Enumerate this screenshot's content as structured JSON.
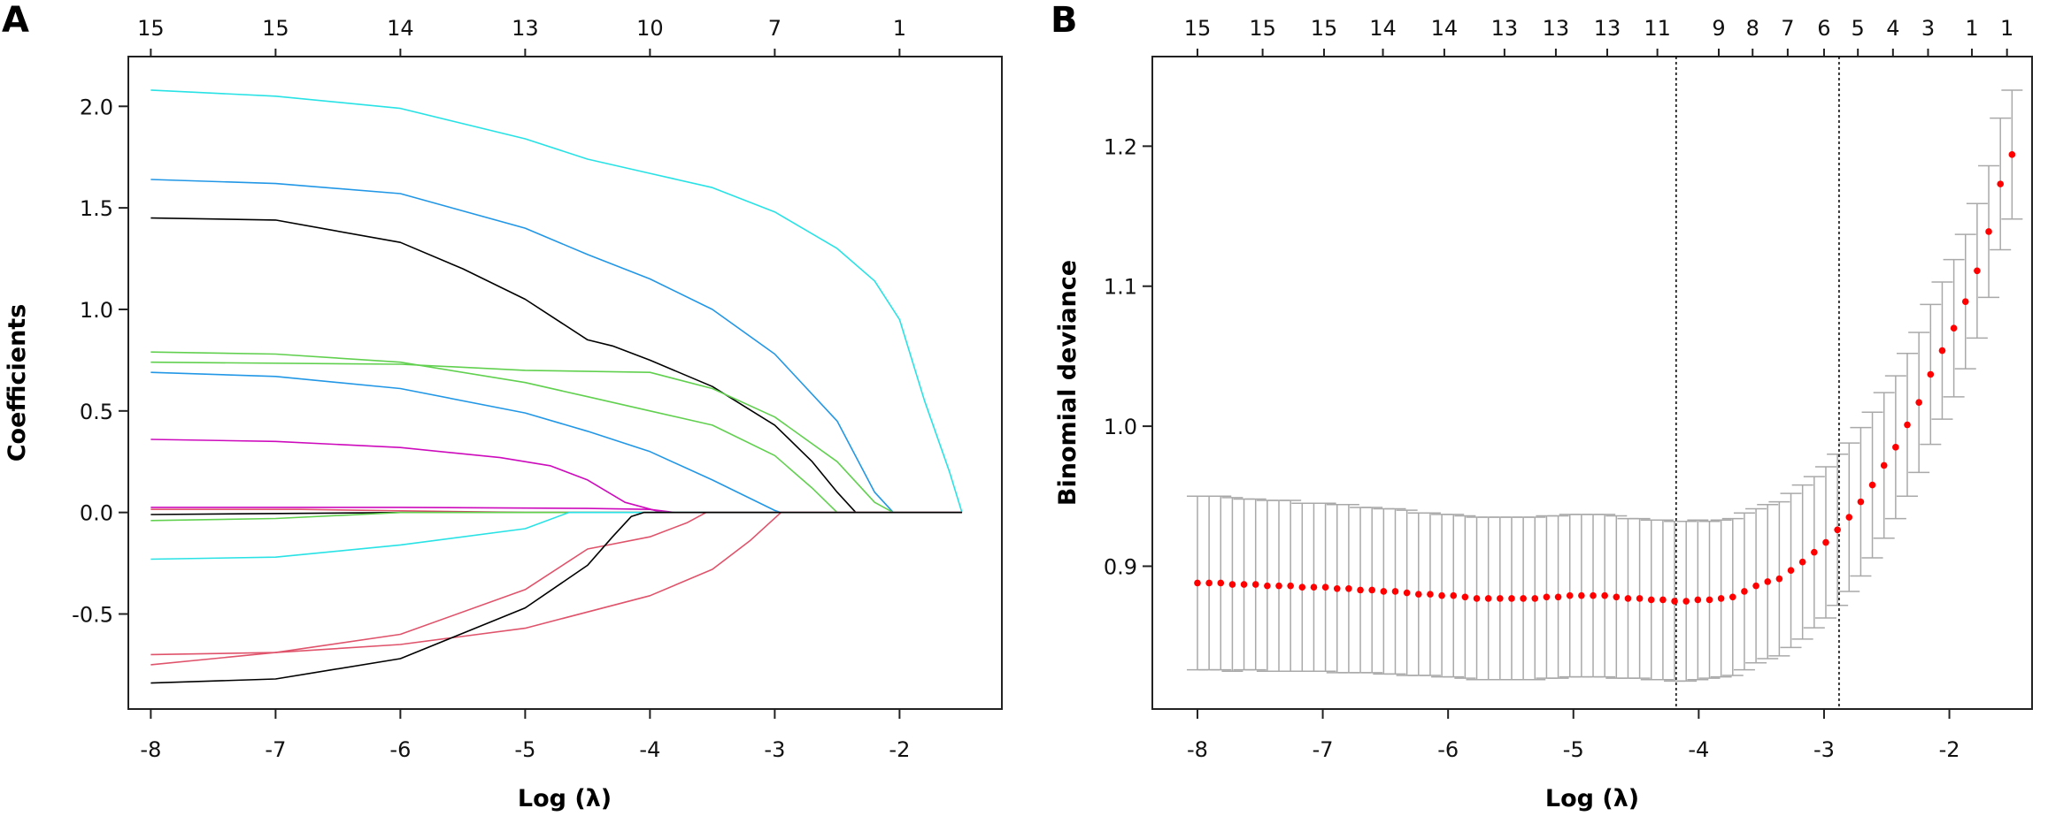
{
  "chart_data": [
    {
      "type": "line",
      "panel_label": "A",
      "xlabel": "Log (λ)",
      "ylabel": "Coefficients",
      "xlim": [
        -8.18,
        -1.18
      ],
      "ylim": [
        -0.968,
        2.245
      ],
      "x_ticks": [
        -8,
        -7,
        -6,
        -5,
        -4,
        -3,
        -2
      ],
      "y_ticks": [
        -0.5,
        0.0,
        0.5,
        1.0,
        1.5,
        2.0
      ],
      "y_tick_labels": [
        "-0.5",
        "0.0",
        "0.5",
        "1.0",
        "1.5",
        "2.0"
      ],
      "top_axis": {
        "x": [
          -8,
          -7,
          -6,
          -5,
          -4,
          -3,
          -2
        ],
        "labels": [
          "15",
          "15",
          "14",
          "13",
          "10",
          "7",
          "1"
        ]
      },
      "grid": false,
      "legend": "none",
      "series": [
        {
          "color": "#28E2E5",
          "points": [
            [
              -8,
              2.08
            ],
            [
              -7,
              2.05
            ],
            [
              -6,
              1.99
            ],
            [
              -5,
              1.84
            ],
            [
              -4.5,
              1.74
            ],
            [
              -4,
              1.67
            ],
            [
              -3.5,
              1.6
            ],
            [
              -3,
              1.48
            ],
            [
              -2.5,
              1.3
            ],
            [
              -2.2,
              1.14
            ],
            [
              -2,
              0.95
            ],
            [
              -1.8,
              0.55
            ],
            [
              -1.6,
              0.2
            ],
            [
              -1.5,
              0
            ]
          ]
        },
        {
          "color": "#2297E6",
          "points": [
            [
              -8,
              1.64
            ],
            [
              -7,
              1.62
            ],
            [
              -6,
              1.57
            ],
            [
              -5,
              1.4
            ],
            [
              -4.5,
              1.27
            ],
            [
              -4,
              1.15
            ],
            [
              -3.5,
              1.0
            ],
            [
              -3,
              0.78
            ],
            [
              -2.5,
              0.45
            ],
            [
              -2.2,
              0.1
            ],
            [
              -2.05,
              0
            ],
            [
              -1.5,
              0
            ]
          ]
        },
        {
          "color": "#000000",
          "points": [
            [
              -8,
              1.45
            ],
            [
              -7,
              1.44
            ],
            [
              -6,
              1.33
            ],
            [
              -5.5,
              1.2
            ],
            [
              -5,
              1.05
            ],
            [
              -4.5,
              0.85
            ],
            [
              -4.3,
              0.82
            ],
            [
              -4,
              0.75
            ],
            [
              -3.5,
              0.62
            ],
            [
              -3,
              0.43
            ],
            [
              -2.7,
              0.25
            ],
            [
              -2.5,
              0.1
            ],
            [
              -2.35,
              0
            ],
            [
              -1.5,
              0
            ]
          ]
        },
        {
          "color": "#61D04F",
          "points": [
            [
              -8,
              0.79
            ],
            [
              -7,
              0.78
            ],
            [
              -6,
              0.74
            ],
            [
              -5,
              0.64
            ],
            [
              -4.5,
              0.57
            ],
            [
              -4,
              0.5
            ],
            [
              -3.5,
              0.43
            ],
            [
              -3,
              0.28
            ],
            [
              -2.7,
              0.12
            ],
            [
              -2.5,
              0
            ],
            [
              -1.5,
              0
            ]
          ]
        },
        {
          "color": "#61D04F",
          "points": [
            [
              -8,
              0.74
            ],
            [
              -6,
              0.73
            ],
            [
              -5,
              0.7
            ],
            [
              -4,
              0.69
            ],
            [
              -3.5,
              0.61
            ],
            [
              -3,
              0.47
            ],
            [
              -2.5,
              0.25
            ],
            [
              -2.2,
              0.05
            ],
            [
              -2.05,
              0
            ],
            [
              -1.5,
              0
            ]
          ]
        },
        {
          "color": "#2297E6",
          "points": [
            [
              -8,
              0.69
            ],
            [
              -7,
              0.67
            ],
            [
              -6,
              0.61
            ],
            [
              -5,
              0.49
            ],
            [
              -4.5,
              0.4
            ],
            [
              -4,
              0.3
            ],
            [
              -3.5,
              0.16
            ],
            [
              -3,
              0.01
            ],
            [
              -2.95,
              0
            ],
            [
              -1.5,
              0
            ]
          ]
        },
        {
          "color": "#CD0BBC",
          "points": [
            [
              -8,
              0.36
            ],
            [
              -7,
              0.35
            ],
            [
              -6,
              0.32
            ],
            [
              -5.2,
              0.27
            ],
            [
              -4.8,
              0.23
            ],
            [
              -4.5,
              0.16
            ],
            [
              -4.2,
              0.05
            ],
            [
              -3.9,
              0
            ],
            [
              -1.5,
              0
            ]
          ]
        },
        {
          "color": "#CD0BBC",
          "points": [
            [
              -8,
              0.025
            ],
            [
              -6,
              0.025
            ],
            [
              -4.5,
              0.02
            ],
            [
              -4,
              0.015
            ],
            [
              -3.8,
              0
            ],
            [
              -1.5,
              0
            ]
          ]
        },
        {
          "color": "#DF536B",
          "points": [
            [
              -8,
              0.015
            ],
            [
              -6.8,
              0.015
            ],
            [
              -5,
              0
            ],
            [
              -1.5,
              0
            ]
          ]
        },
        {
          "color": "#000000",
          "points": [
            [
              -8,
              -0.01
            ],
            [
              -6,
              0
            ],
            [
              -1.5,
              0
            ]
          ]
        },
        {
          "color": "#61D04F",
          "points": [
            [
              -8,
              -0.04
            ],
            [
              -7,
              -0.03
            ],
            [
              -6,
              0
            ],
            [
              -1.5,
              0
            ]
          ]
        },
        {
          "color": "#28E2E5",
          "points": [
            [
              -8,
              -0.23
            ],
            [
              -7,
              -0.22
            ],
            [
              -6,
              -0.16
            ],
            [
              -5,
              -0.08
            ],
            [
              -4.65,
              0
            ],
            [
              -1.5,
              0
            ]
          ]
        },
        {
          "color": "#DF536B",
          "points": [
            [
              -8,
              -0.7
            ],
            [
              -7,
              -0.69
            ],
            [
              -6,
              -0.6
            ],
            [
              -5,
              -0.38
            ],
            [
              -4.5,
              -0.18
            ],
            [
              -4,
              -0.12
            ],
            [
              -3.7,
              -0.05
            ],
            [
              -3.55,
              0
            ],
            [
              -1.5,
              0
            ]
          ]
        },
        {
          "color": "#DF536B",
          "points": [
            [
              -8,
              -0.75
            ],
            [
              -7,
              -0.69
            ],
            [
              -6,
              -0.65
            ],
            [
              -5,
              -0.57
            ],
            [
              -4,
              -0.41
            ],
            [
              -3.5,
              -0.28
            ],
            [
              -3.2,
              -0.14
            ],
            [
              -2.95,
              0
            ],
            [
              -1.5,
              0
            ]
          ]
        },
        {
          "color": "#000000",
          "points": [
            [
              -8,
              -0.84
            ],
            [
              -7,
              -0.82
            ],
            [
              -6,
              -0.72
            ],
            [
              -5,
              -0.47
            ],
            [
              -4.5,
              -0.26
            ],
            [
              -4.3,
              -0.12
            ],
            [
              -4.15,
              -0.02
            ],
            [
              -4.05,
              0
            ],
            [
              -1.5,
              0
            ]
          ]
        }
      ]
    },
    {
      "type": "scatter",
      "panel_label": "B",
      "xlabel": "Log (λ)",
      "ylabel": "Binomial deviance",
      "xlim": [
        -8.36,
        -1.34
      ],
      "ylim": [
        0.798,
        1.264
      ],
      "x_ticks": [
        -8,
        -7,
        -6,
        -5,
        -4,
        -3,
        -2
      ],
      "y_ticks": [
        0.9,
        1.0,
        1.1,
        1.2
      ],
      "y_tick_labels": [
        "0.9",
        "1.0",
        "1.1",
        "1.2"
      ],
      "top_axis": {
        "x": [
          -8.0,
          -7.48,
          -6.99,
          -6.52,
          -6.03,
          -5.55,
          -5.14,
          -4.73,
          -4.33,
          -3.84,
          -3.57,
          -3.29,
          -3.0,
          -2.73,
          -2.45,
          -2.17,
          -1.82,
          -1.54
        ],
        "labels": [
          "15",
          "15",
          "15",
          "14",
          "14",
          "13",
          "13",
          "13",
          "11",
          "9",
          "8",
          "7",
          "6",
          "5",
          "4",
          "3",
          "1",
          "1"
        ]
      },
      "vlines": [
        -4.18,
        -2.88
      ],
      "grid": false,
      "legend": "none",
      "point_color": "#FF0000",
      "errorbar_color": "#A9A9A9",
      "x_start": -8.0,
      "x_end": -1.5,
      "mean": [
        0.888,
        0.888,
        0.888,
        0.887,
        0.887,
        0.887,
        0.886,
        0.886,
        0.886,
        0.885,
        0.885,
        0.885,
        0.884,
        0.884,
        0.883,
        0.883,
        0.882,
        0.882,
        0.881,
        0.88,
        0.88,
        0.879,
        0.879,
        0.878,
        0.877,
        0.877,
        0.877,
        0.877,
        0.877,
        0.877,
        0.878,
        0.878,
        0.879,
        0.879,
        0.879,
        0.879,
        0.878,
        0.877,
        0.877,
        0.876,
        0.876,
        0.875,
        0.875,
        0.876,
        0.876,
        0.877,
        0.878,
        0.882,
        0.886,
        0.889,
        0.891,
        0.897,
        0.903,
        0.91,
        0.917,
        0.926,
        0.935,
        0.946,
        0.958,
        0.972,
        0.985,
        1.001,
        1.017,
        1.037,
        1.054,
        1.07,
        1.089,
        1.111,
        1.139,
        1.173,
        1.194
      ],
      "se": [
        0.062,
        0.062,
        0.062,
        0.062,
        0.061,
        0.061,
        0.061,
        0.061,
        0.061,
        0.06,
        0.06,
        0.06,
        0.06,
        0.06,
        0.059,
        0.059,
        0.059,
        0.059,
        0.059,
        0.058,
        0.058,
        0.058,
        0.058,
        0.058,
        0.058,
        0.058,
        0.058,
        0.058,
        0.058,
        0.058,
        0.058,
        0.058,
        0.058,
        0.058,
        0.058,
        0.058,
        0.058,
        0.057,
        0.057,
        0.057,
        0.057,
        0.057,
        0.057,
        0.057,
        0.056,
        0.056,
        0.056,
        0.056,
        0.055,
        0.055,
        0.055,
        0.055,
        0.055,
        0.054,
        0.054,
        0.054,
        0.053,
        0.053,
        0.052,
        0.052,
        0.051,
        0.051,
        0.05,
        0.05,
        0.049,
        0.049,
        0.048,
        0.048,
        0.047,
        0.047,
        0.046
      ]
    }
  ]
}
